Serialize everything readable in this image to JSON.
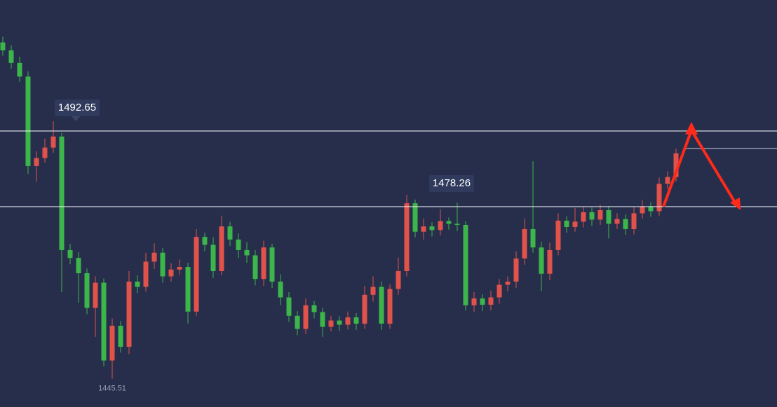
{
  "chart_data": {
    "type": "candlestick",
    "ylim": [
      1440.15,
      1517.57
    ],
    "up_color": "#e0524a",
    "down_color": "#3cb54a",
    "level_color": "#ffffff",
    "levels": [
      1492.65,
      1478.26
    ],
    "reference_line": 1489.32,
    "open": [
      1509.5,
      1508.0,
      1505.6,
      1503.0,
      1486.0,
      1487.5,
      1489.5,
      1491.6,
      1470.0,
      1468.5,
      1465.6,
      1459.0,
      1463.8,
      1449.0,
      1455.6,
      1451.6,
      1464.0,
      1463.0,
      1467.8,
      1469.5,
      1465.0,
      1466.3,
      1466.8,
      1458.3,
      1472.5,
      1471.0,
      1466.0,
      1474.5,
      1472.0,
      1470.0,
      1469.0,
      1464.5,
      1470.5,
      1464.0,
      1461.0,
      1457.5,
      1455.0,
      1459.5,
      1458.2,
      1455.4,
      1456.6,
      1455.8,
      1457.2,
      1456.0,
      1461.5,
      1463.0,
      1456.0,
      1462.6,
      1466.0,
      1478.9,
      1473.5,
      1474.5,
      1473.8,
      1475.5,
      1475.0,
      1474.8,
      1459.5,
      1460.8,
      1459.6,
      1461.0,
      1463.4,
      1464.0,
      1468.4,
      1474.0,
      1470.5,
      1465.5,
      1470.0,
      1475.6,
      1474.4,
      1475.4,
      1477.2,
      1475.8,
      1477.6,
      1475.0,
      1475.9,
      1474.0,
      1477.0,
      1478.3,
      1477.4,
      1482.6,
      1483.9
    ],
    "high": [
      1510.6,
      1509.0,
      1506.8,
      1504.0,
      1488.8,
      1491.2,
      1494.5,
      1492.3,
      1471.2,
      1469.6,
      1466.5,
      1465.0,
      1464.6,
      1457.0,
      1456.5,
      1466.0,
      1465.2,
      1469.5,
      1471.3,
      1470.4,
      1467.5,
      1468.2,
      1467.6,
      1474.0,
      1473.3,
      1472.4,
      1476.5,
      1475.4,
      1473.2,
      1471.5,
      1470.0,
      1471.8,
      1471.2,
      1465.4,
      1462.0,
      1458.4,
      1460.8,
      1460.3,
      1459.0,
      1457.5,
      1457.4,
      1458.3,
      1458.0,
      1463.2,
      1465.0,
      1464.0,
      1463.5,
      1468.6,
      1480.5,
      1479.6,
      1476.0,
      1475.3,
      1477.8,
      1476.2,
      1479.0,
      1475.5,
      1462.0,
      1461.6,
      1462.3,
      1464.5,
      1465.0,
      1469.8,
      1476.0,
      1486.9,
      1471.6,
      1471.4,
      1477.0,
      1476.4,
      1478.0,
      1478.2,
      1478.1,
      1478.6,
      1478.4,
      1477.0,
      1476.8,
      1478.2,
      1479.5,
      1479.1,
      1483.8,
      1485.0,
      1489.3
    ],
    "low": [
      1507.0,
      1504.5,
      1502.0,
      1484.5,
      1483.0,
      1486.6,
      1488.5,
      1462.0,
      1467.3,
      1460.0,
      1457.8,
      1453.5,
      1447.9,
      1445.51,
      1450.5,
      1450.2,
      1461.8,
      1462.1,
      1466.4,
      1463.8,
      1464.0,
      1465.3,
      1456.0,
      1457.5,
      1469.8,
      1464.7,
      1465.2,
      1470.8,
      1468.5,
      1467.6,
      1463.3,
      1463.2,
      1462.8,
      1459.5,
      1456.3,
      1453.8,
      1454.0,
      1457.0,
      1453.5,
      1454.5,
      1454.6,
      1454.9,
      1454.8,
      1455.0,
      1460.2,
      1454.8,
      1455.0,
      1461.5,
      1465.0,
      1472.4,
      1472.0,
      1472.6,
      1472.8,
      1473.9,
      1473.6,
      1458.5,
      1458.2,
      1458.4,
      1458.5,
      1459.8,
      1462.2,
      1462.8,
      1467.2,
      1469.5,
      1462.2,
      1464.3,
      1469.0,
      1473.3,
      1473.5,
      1474.3,
      1474.6,
      1474.8,
      1472.2,
      1474.0,
      1472.9,
      1473.0,
      1476.0,
      1476.3,
      1476.5,
      1481.6,
      1483.0
    ],
    "close": [
      1508.0,
      1505.6,
      1503.0,
      1486.0,
      1487.5,
      1489.5,
      1491.6,
      1470.0,
      1468.5,
      1465.6,
      1459.0,
      1463.8,
      1449.0,
      1455.6,
      1451.6,
      1464.0,
      1463.0,
      1467.8,
      1469.5,
      1465.0,
      1466.3,
      1466.8,
      1458.3,
      1472.5,
      1471.0,
      1466.0,
      1474.5,
      1472.0,
      1470.0,
      1469.0,
      1464.5,
      1470.5,
      1464.0,
      1461.0,
      1457.5,
      1455.0,
      1459.5,
      1458.2,
      1455.4,
      1456.6,
      1455.8,
      1457.2,
      1456.0,
      1461.5,
      1463.0,
      1456.0,
      1462.6,
      1466.0,
      1478.9,
      1473.5,
      1474.5,
      1473.8,
      1475.5,
      1475.0,
      1474.8,
      1459.5,
      1460.8,
      1459.6,
      1461.0,
      1463.4,
      1464.0,
      1468.4,
      1474.0,
      1470.5,
      1465.5,
      1470.0,
      1475.6,
      1474.4,
      1475.4,
      1477.2,
      1475.8,
      1477.6,
      1475.0,
      1475.9,
      1474.0,
      1477.0,
      1478.3,
      1477.4,
      1482.6,
      1483.9,
      1488.4
    ]
  }
}
